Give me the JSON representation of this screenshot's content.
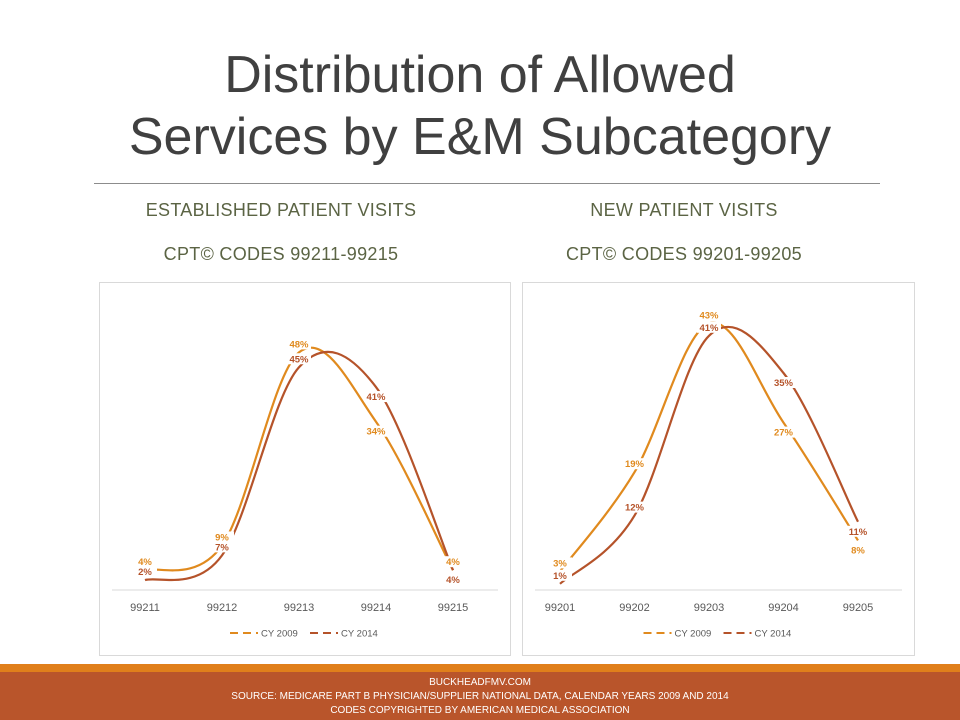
{
  "title_line1": "Distribution of Allowed",
  "title_line2": "Services by E&M Subcategory",
  "left_heading": "ESTABLISHED PATIENT VISITS",
  "left_codes": "CPT© CODES 99211-99215",
  "right_heading": "NEW PATIENT VISITS",
  "right_codes": "CPT© CODES 99201-99205",
  "footer": {
    "line1": "BUCKHEADFMV.COM",
    "line2": "SOURCE:  MEDICARE PART B PHYSICIAN/SUPPLIER NATIONAL DATA, CALENDAR YEARS 2009 AND 2014",
    "line3": "CODES COPYRIGHTED BY AMERICAN MEDICAL ASSOCIATION"
  },
  "colors": {
    "cy2009": "#e08a1e",
    "cy2014": "#b5532a",
    "footer": "#b9552b",
    "footer_strip": "#e07f1b"
  },
  "chart_data": [
    {
      "type": "line",
      "smooth": true,
      "categories": [
        "99211",
        "99212",
        "99213",
        "99214",
        "99215"
      ],
      "series": [
        {
          "name": "CY 2009",
          "values": [
            4,
            9,
            48,
            34,
            4
          ],
          "labels": [
            "4%",
            "9%",
            "48%",
            "34%",
            "4%"
          ]
        },
        {
          "name": "CY 2014",
          "values": [
            2,
            7,
            45,
            41,
            4
          ],
          "labels": [
            "2%",
            "7%",
            "45%",
            "41%",
            "4%"
          ]
        }
      ],
      "legend": "bottom",
      "grid": false
    },
    {
      "type": "line",
      "smooth": true,
      "categories": [
        "99201",
        "99202",
        "99203",
        "99204",
        "99205"
      ],
      "series": [
        {
          "name": "CY 2009",
          "values": [
            3,
            19,
            43,
            27,
            8
          ],
          "labels": [
            "3%",
            "19%",
            "43%",
            "27%",
            "8%"
          ]
        },
        {
          "name": "CY 2014",
          "values": [
            1,
            12,
            41,
            35,
            11
          ],
          "labels": [
            "1%",
            "12%",
            "41%",
            "35%",
            "11%"
          ]
        }
      ],
      "legend": "bottom",
      "grid": false
    }
  ]
}
